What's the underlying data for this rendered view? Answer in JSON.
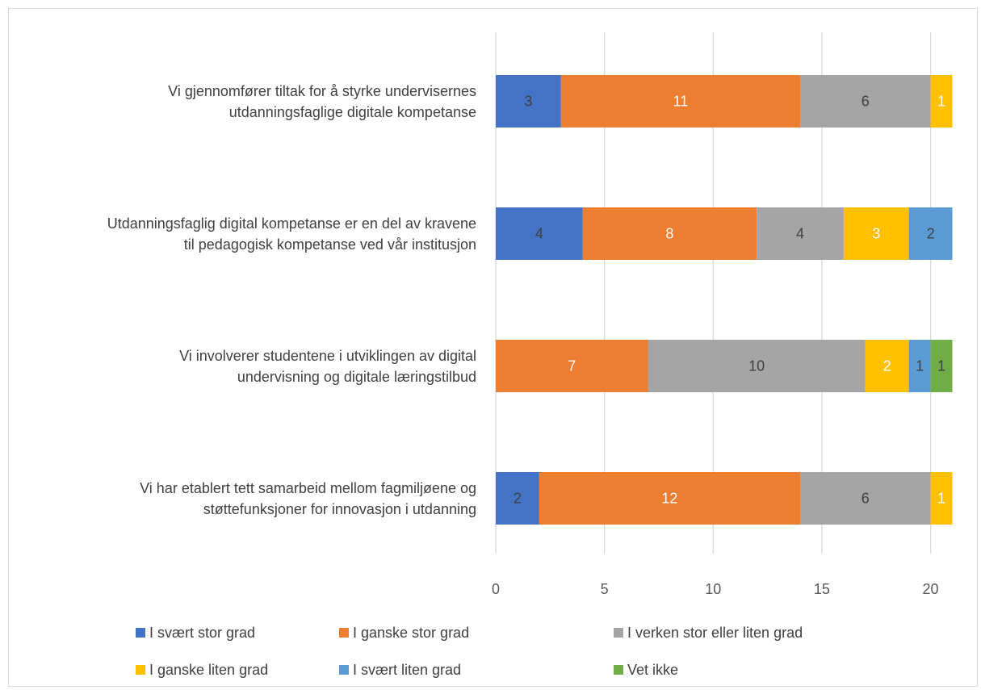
{
  "chart_data": {
    "type": "stacked_barh",
    "categories": [
      "Vi gjennomfører tiltak for å styrke undervisernes\nutdanningsfaglige digitale kompetanse",
      "Utdanningsfaglig digital kompetanse er en del av kravene\ntil pedagogisk kompetanse ved vår institusjon",
      "Vi involverer studentene i utviklingen av digital\nundervisning og digitale læringstilbud",
      "Vi har etablert tett samarbeid mellom fagmiljøene og\nstøttefunksjoner for innovasjon i utdanning"
    ],
    "series": [
      {
        "name": "I svært stor grad",
        "color": "#4472c4",
        "label_color": "#404040",
        "values": [
          3,
          4,
          0,
          2
        ]
      },
      {
        "name": "I ganske stor grad",
        "color": "#ed7d31",
        "label_color": "#ffffff",
        "values": [
          11,
          8,
          7,
          12
        ]
      },
      {
        "name": "I verken stor eller liten grad",
        "color": "#a5a5a5",
        "label_color": "#404040",
        "values": [
          6,
          4,
          10,
          6
        ]
      },
      {
        "name": "I ganske liten grad",
        "color": "#ffc000",
        "label_color": "#ffffff",
        "values": [
          1,
          3,
          2,
          1
        ]
      },
      {
        "name": "I svært liten grad",
        "color": "#5b9bd5",
        "label_color": "#404040",
        "values": [
          0,
          2,
          1,
          0
        ]
      },
      {
        "name": "Vet ikke",
        "color": "#70ad47",
        "label_color": "#404040",
        "values": [
          0,
          0,
          1,
          0
        ]
      }
    ],
    "xlim": [
      0,
      21
    ],
    "xticks": [
      0,
      5,
      10,
      15,
      20
    ],
    "grid": true,
    "legend": "bottom"
  }
}
